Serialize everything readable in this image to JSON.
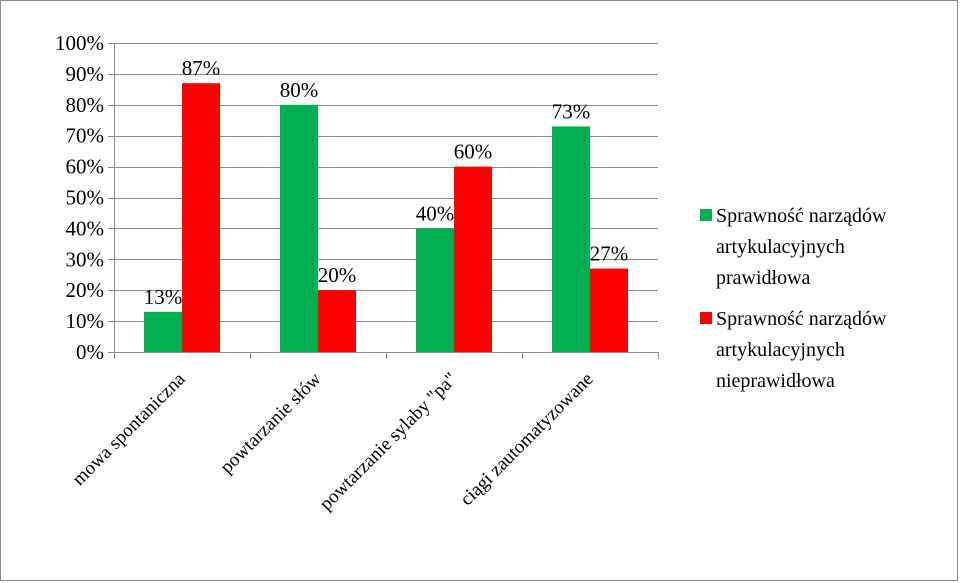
{
  "chart_data": {
    "type": "bar",
    "title": "",
    "xlabel": "",
    "ylabel": "",
    "categories": [
      "mowa spontaniczna",
      "powtarzanie słów",
      "powtarzanie sylaby \"pa\"",
      "ciągi zautomatyzowane"
    ],
    "series": [
      {
        "name": "Sprawność narządów artykulacyjnych prawidłowa",
        "color": "#00b050",
        "values": [
          13,
          80,
          40,
          73
        ],
        "labels": [
          "13%",
          "80%",
          "40%",
          "73%"
        ]
      },
      {
        "name": "Sprawność narządów artykulacyjnych nieprawidłowa",
        "color": "#ff0000",
        "values": [
          87,
          20,
          60,
          27
        ],
        "labels": [
          "87%",
          "20%",
          "60%",
          "27%"
        ]
      }
    ],
    "ylim": [
      0,
      100
    ],
    "yticks": [
      0,
      10,
      20,
      30,
      40,
      50,
      60,
      70,
      80,
      90,
      100
    ],
    "ytick_labels": [
      "0%",
      "10%",
      "20%",
      "30%",
      "40%",
      "50%",
      "60%",
      "70%",
      "80%",
      "90%",
      "100%"
    ],
    "grid": true,
    "legend_position": "right",
    "legend_lines": [
      [
        "Sprawność narządów",
        "artykulacyjnych",
        "prawidłowa"
      ],
      [
        "Sprawność narządów",
        "artykulacyjnych",
        "nieprawidłowa"
      ]
    ]
  }
}
